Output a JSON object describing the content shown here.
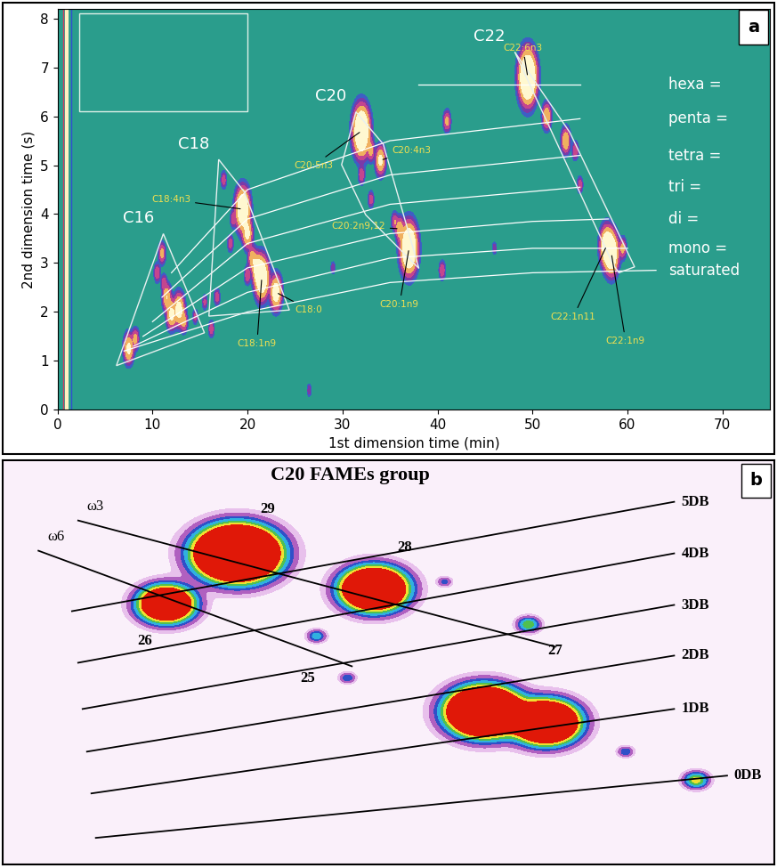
{
  "chart_data": [
    {
      "type": "contour",
      "panel": "a",
      "xlabel": "1st dimension time (min)",
      "ylabel": "2nd dimension time (s)",
      "xlim": [
        0,
        75
      ],
      "ylim": [
        0,
        8.2
      ],
      "xticks": [
        0,
        10,
        20,
        30,
        40,
        50,
        60,
        70
      ],
      "yticks": [
        0,
        1,
        2,
        3,
        4,
        5,
        6,
        7,
        8
      ],
      "solvent_front_x": 1.0,
      "groups": [
        "C16",
        "C18",
        "C20",
        "C22"
      ],
      "peaks": {
        "x": [
          7.5,
          8.2,
          10.5,
          11,
          11.5,
          12,
          12.8,
          13.3,
          11.2,
          17.5,
          18.5,
          18.2,
          19.5,
          20,
          20.5,
          21,
          21.5,
          23,
          20,
          16.8,
          32,
          32,
          33,
          34,
          33,
          35.5,
          36,
          37,
          49.5,
          51.5,
          53.5,
          54.5,
          55,
          57.8,
          58.3,
          59.5,
          14.5,
          15.5,
          16.2,
          26.5,
          29,
          46,
          40.5,
          41
        ],
        "y": [
          1.25,
          1.45,
          2.8,
          3.2,
          2.3,
          1.95,
          2.05,
          1.8,
          2.6,
          4.7,
          3.9,
          3.4,
          4.1,
          3.6,
          3.1,
          2.9,
          2.7,
          2.4,
          2.75,
          2.3,
          5.7,
          4.8,
          5.3,
          5.1,
          4.3,
          3.85,
          3.7,
          3.3,
          6.8,
          6.0,
          5.5,
          5.3,
          4.6,
          3.35,
          3.2,
          3.3,
          1.9,
          2.2,
          1.65,
          0.4,
          2.9,
          3.3,
          2.85,
          5.9
        ],
        "intensity": [
          1.5,
          0.8,
          0.6,
          0.8,
          1.2,
          1.5,
          1.8,
          0.8,
          0.5,
          0.5,
          0.5,
          0.5,
          3,
          1.5,
          1,
          1.5,
          3,
          2,
          0.6,
          0.5,
          4,
          0.6,
          0.8,
          1.5,
          0.5,
          0.6,
          1,
          4,
          4.5,
          1.2,
          1.2,
          0.6,
          0.5,
          2.5,
          3,
          0.8,
          0.4,
          0.4,
          0.5,
          0.3,
          0.3,
          0.3,
          0.6,
          0.8
        ],
        "group": [
          "C16",
          "C16",
          "C16",
          "C16",
          "C16",
          "C16",
          "C16",
          "C16",
          "C16",
          "C18",
          "C18",
          "C18",
          "C18",
          "C18",
          "C18",
          "C18",
          "C18",
          "C18",
          "C18",
          "C18",
          "C20",
          "C20",
          "C20",
          "C20",
          "C20",
          "C20",
          "C20",
          "C20",
          "C22",
          "C22",
          "C22",
          "C22",
          "C22",
          "C22",
          "C22",
          "C22",
          null,
          null,
          null,
          null,
          null,
          null,
          null,
          null
        ],
        "labels": [
          null,
          null,
          null,
          null,
          null,
          null,
          null,
          null,
          null,
          null,
          null,
          null,
          "C18:4n3",
          null,
          null,
          null,
          "C18:1n9",
          "C18:0",
          null,
          null,
          "C20:5n3",
          null,
          null,
          "C20:4n3",
          null,
          null,
          "C20:2n9,12",
          "C20:1n9",
          "C22:6n3",
          null,
          null,
          null,
          null,
          "C22:1n11",
          "C22:1n9",
          null,
          null,
          null,
          null,
          null,
          null,
          null,
          null,
          null
        ]
      },
      "curves": [
        {
          "name": "hexa =",
          "x": [
            38,
            55
          ],
          "y": [
            6.65,
            6.65
          ]
        },
        {
          "name": "penta =",
          "x": [
            12,
            20,
            35,
            55
          ],
          "y": [
            2.8,
            4.5,
            5.5,
            5.95
          ]
        },
        {
          "name": "tetra =",
          "x": [
            11,
            20,
            35,
            55
          ],
          "y": [
            2.3,
            3.9,
            4.8,
            5.2
          ]
        },
        {
          "name": "tri =",
          "x": [
            10,
            20,
            35,
            55
          ],
          "y": [
            1.8,
            3.4,
            4.2,
            4.55
          ]
        },
        {
          "name": "di =",
          "x": [
            9,
            20,
            35,
            50,
            58
          ],
          "y": [
            1.5,
            2.9,
            3.6,
            3.85,
            3.9
          ]
        },
        {
          "name": "mono =",
          "x": [
            8,
            20,
            35,
            50,
            60
          ],
          "y": [
            1.3,
            2.4,
            3.1,
            3.3,
            3.3
          ]
        },
        {
          "name": "saturated",
          "x": [
            7,
            20,
            35,
            50,
            63
          ],
          "y": [
            1.2,
            2.0,
            2.6,
            2.8,
            2.85
          ]
        }
      ]
    },
    {
      "type": "contour",
      "panel": "b",
      "title": "C20 FAMEs group",
      "xlim": [
        0,
        873
      ],
      "ylim": [
        0,
        455
      ],
      "tick_labels": false,
      "peaks": {
        "x": [
          265,
          420,
          185,
          355,
          595,
          545,
          615,
          390,
          705,
          500,
          785
        ],
        "y": [
          350,
          310,
          293,
          257,
          270,
          172,
          160,
          210,
          127,
          318,
          95
        ],
        "intensity": [
          6,
          4,
          3,
          0.4,
          0.6,
          5,
          4,
          0.3,
          0.3,
          0.25,
          0.7
        ],
        "labels": [
          "29",
          "28",
          "26",
          "25",
          "27",
          null,
          null,
          null,
          null,
          null,
          null
        ]
      },
      "lines": [
        {
          "name": "5DB",
          "x": [
            78,
            760
          ],
          "y": [
            285,
            408
          ]
        },
        {
          "name": "4DB",
          "x": [
            85,
            760
          ],
          "y": [
            227,
            350
          ]
        },
        {
          "name": "3DB",
          "x": [
            90,
            760
          ],
          "y": [
            175,
            292
          ]
        },
        {
          "name": "2DB",
          "x": [
            95,
            760
          ],
          "y": [
            127,
            235
          ]
        },
        {
          "name": "1DB",
          "x": [
            100,
            760
          ],
          "y": [
            80,
            175
          ]
        },
        {
          "name": "0DB",
          "x": [
            105,
            820
          ],
          "y": [
            30,
            100
          ]
        },
        {
          "name": "ω3",
          "x": [
            85,
            625
          ],
          "y": [
            387,
            245
          ]
        },
        {
          "name": "ω6",
          "x": [
            40,
            395
          ],
          "y": [
            353,
            223
          ]
        }
      ]
    }
  ]
}
